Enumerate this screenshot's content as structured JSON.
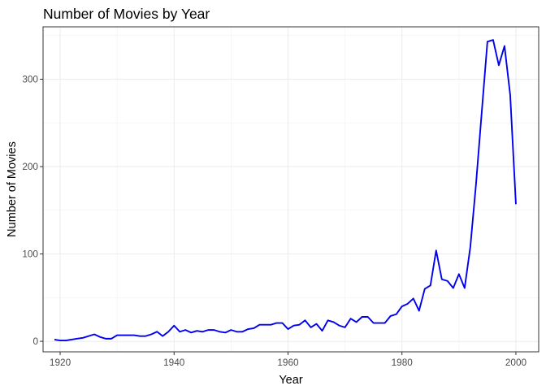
{
  "chart_data": {
    "type": "line",
    "title": "Number of Movies by Year",
    "xlabel": "Year",
    "ylabel": "Number of Movies",
    "xlim": [
      1917,
      2004
    ],
    "ylim": [
      -12,
      360
    ],
    "x_ticks": [
      1920,
      1940,
      1960,
      1980,
      2000
    ],
    "y_ticks": [
      0,
      100,
      200,
      300
    ],
    "grid": true,
    "legend": "none",
    "series": [
      {
        "color": "#0000ee",
        "x": [
          1919,
          1920,
          1921,
          1922,
          1923,
          1924,
          1925,
          1926,
          1927,
          1928,
          1929,
          1930,
          1931,
          1932,
          1933,
          1934,
          1935,
          1936,
          1937,
          1938,
          1939,
          1940,
          1941,
          1942,
          1943,
          1944,
          1945,
          1946,
          1947,
          1948,
          1949,
          1950,
          1951,
          1952,
          1953,
          1954,
          1955,
          1956,
          1957,
          1958,
          1959,
          1960,
          1961,
          1962,
          1963,
          1964,
          1965,
          1966,
          1967,
          1968,
          1969,
          1970,
          1971,
          1972,
          1973,
          1974,
          1975,
          1976,
          1977,
          1978,
          1979,
          1980,
          1981,
          1982,
          1983,
          1984,
          1985,
          1986,
          1987,
          1988,
          1989,
          1990,
          1991,
          1992,
          1993,
          1994,
          1995,
          1996,
          1997,
          1998,
          1999,
          2000
        ],
        "values": [
          2,
          1,
          1,
          2,
          3,
          4,
          6,
          8,
          5,
          3,
          3,
          7,
          7,
          7,
          7,
          6,
          6,
          8,
          11,
          6,
          11,
          18,
          11,
          13,
          10,
          12,
          11,
          13,
          13,
          11,
          10,
          13,
          11,
          11,
          14,
          15,
          19,
          19,
          19,
          21,
          21,
          14,
          18,
          19,
          24,
          16,
          20,
          12,
          24,
          22,
          18,
          16,
          26,
          22,
          28,
          28,
          21,
          21,
          21,
          29,
          31,
          40,
          43,
          49,
          35,
          60,
          64,
          104,
          71,
          69,
          61,
          77,
          61,
          108,
          180,
          262,
          343,
          345,
          316,
          338,
          282,
          157
        ]
      }
    ]
  }
}
